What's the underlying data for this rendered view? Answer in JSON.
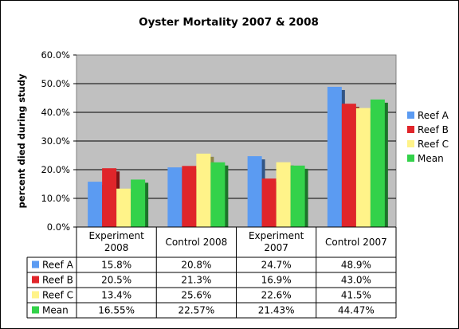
{
  "chart_data": {
    "type": "bar",
    "title": "Oyster Mortality 2007 & 2008",
    "xlabel": "",
    "ylabel": "percent died during study",
    "ylim": [
      0,
      60
    ],
    "yticks": [
      "0.0%",
      "10.0%",
      "20.0%",
      "30.0%",
      "40.0%",
      "50.0%",
      "60.0%"
    ],
    "grid": true,
    "legend_position": "right",
    "plot_background": "#c0c0c0",
    "categories": [
      [
        "Experiment",
        "2008"
      ],
      [
        "Control 2008"
      ],
      [
        "Experiment",
        "2007"
      ],
      [
        "Control 2007"
      ]
    ],
    "series": [
      {
        "name": "Reef A",
        "color": "#5b9bf2",
        "values": [
          15.8,
          20.8,
          24.7,
          48.9
        ],
        "labels": [
          "15.8%",
          "20.8%",
          "24.7%",
          "48.9%"
        ]
      },
      {
        "name": "Reef B",
        "color": "#e0252a",
        "values": [
          20.5,
          21.3,
          16.9,
          43.0
        ],
        "labels": [
          "20.5%",
          "21.3%",
          "16.9%",
          "43.0%"
        ]
      },
      {
        "name": "Reef C",
        "color": "#fff389",
        "values": [
          13.4,
          25.6,
          22.6,
          41.5
        ],
        "labels": [
          "13.4%",
          "25.6%",
          "22.6%",
          "41.5%"
        ]
      },
      {
        "name": "Mean",
        "color": "#33d24a",
        "values": [
          16.55,
          22.57,
          21.43,
          44.47
        ],
        "labels": [
          "16.55%",
          "22.57%",
          "21.43%",
          "44.47%"
        ]
      }
    ]
  }
}
